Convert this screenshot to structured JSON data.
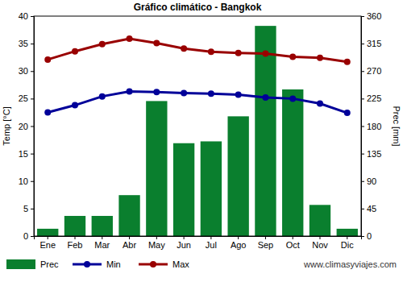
{
  "chart_data": {
    "type": "bar",
    "title": "Gráfico climático - Bangkok",
    "y_label": "Temp [°C]",
    "y2_label": "Prec [mm]",
    "annotation": "www.climasyviajes.com",
    "categories": [
      "Ene",
      "Feb",
      "Mar",
      "Abr",
      "May",
      "Jun",
      "Jul",
      "Ago",
      "Sep",
      "Oct",
      "Nov",
      "Dic"
    ],
    "series": [
      {
        "name": "Prec",
        "type": "bar",
        "axis": "y2",
        "color": "#0a7f2e",
        "values": [
          12,
          33,
          33,
          67,
          221,
          152,
          155,
          196,
          344,
          240,
          51,
          12
        ]
      },
      {
        "name": "Min",
        "type": "line",
        "marker": "circle",
        "color": "#000099",
        "values": [
          22.5,
          23.8,
          25.4,
          26.3,
          26.2,
          26.0,
          25.9,
          25.7,
          25.2,
          25.0,
          24.1,
          22.4
        ]
      },
      {
        "name": "Max",
        "type": "line",
        "marker": "circle",
        "color": "#990000",
        "values": [
          32.1,
          33.6,
          34.9,
          35.9,
          35.1,
          34.1,
          33.5,
          33.3,
          33.2,
          32.6,
          32.4,
          31.7
        ]
      }
    ],
    "ylim": [
      0,
      40
    ],
    "yticks": [
      0,
      5,
      10,
      15,
      20,
      25,
      30,
      35,
      40
    ],
    "y2lim": [
      0,
      360
    ],
    "y2ticks": [
      0,
      45,
      90,
      135,
      180,
      225,
      270,
      315,
      360
    ],
    "grid": false,
    "legend": "bottom"
  }
}
